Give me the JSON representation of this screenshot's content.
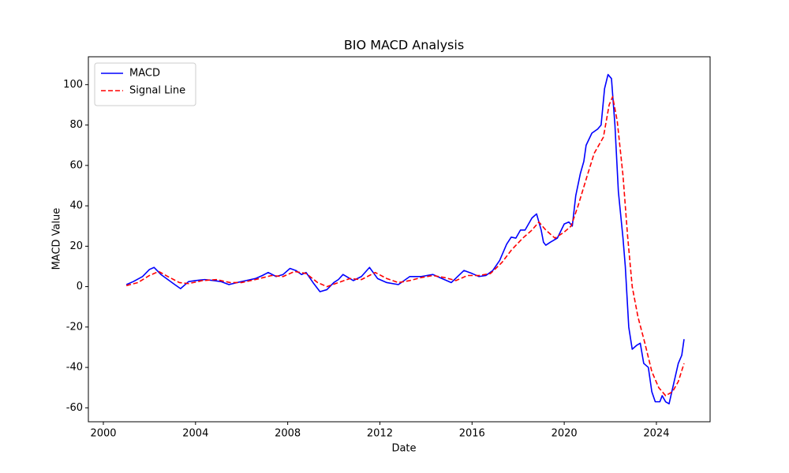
{
  "chart_data": {
    "type": "line",
    "title": "BIO MACD Analysis",
    "xlabel": "Date",
    "ylabel": "MACD Value",
    "xlim": [
      1999.35,
      2026.33
    ],
    "xticks": [
      2000,
      2004,
      2008,
      2012,
      2016,
      2020,
      2024
    ],
    "ylim": [
      -66.9,
      113.8
    ],
    "yticks": [
      -60,
      -40,
      -20,
      0,
      20,
      40,
      60,
      80,
      100
    ],
    "grid": false,
    "legend": "upper left",
    "series": [
      {
        "name": "MACD",
        "color": "#0000ff",
        "dashed": false,
        "x": [
          2001.0,
          2001.3,
          2001.7,
          2002.0,
          2002.2,
          2002.5,
          2002.8,
          2003.1,
          2003.35,
          2003.7,
          2004.0,
          2004.4,
          2004.8,
          2005.1,
          2005.45,
          2005.8,
          2006.2,
          2006.6,
          2006.9,
          2007.15,
          2007.5,
          2007.8,
          2008.1,
          2008.35,
          2008.6,
          2008.8,
          2009.1,
          2009.4,
          2009.7,
          2010.0,
          2010.2,
          2010.4,
          2010.85,
          2011.2,
          2011.55,
          2011.9,
          2012.3,
          2012.8,
          2013.3,
          2013.8,
          2014.3,
          2014.7,
          2015.1,
          2015.65,
          2016.0,
          2016.3,
          2016.6,
          2016.9,
          2017.2,
          2017.5,
          2017.7,
          2017.9,
          2018.1,
          2018.3,
          2018.6,
          2018.8,
          2019.0,
          2019.1,
          2019.2,
          2019.4,
          2019.7,
          2020.0,
          2020.2,
          2020.35,
          2020.5,
          2020.7,
          2020.85,
          2020.95,
          2021.2,
          2021.45,
          2021.6,
          2021.75,
          2021.9,
          2022.05,
          2022.2,
          2022.35,
          2022.55,
          2022.65,
          2022.8,
          2022.95,
          2023.15,
          2023.3,
          2023.45,
          2023.65,
          2023.8,
          2023.95,
          2024.15,
          2024.25,
          2024.4,
          2024.55,
          2024.75,
          2024.95,
          2025.1,
          2025.2
        ],
        "values": [
          1,
          2.5,
          5,
          8.5,
          9.5,
          6,
          3.5,
          1,
          -1,
          2.5,
          3,
          3.5,
          3,
          2.5,
          1,
          2,
          3,
          4,
          5.5,
          7,
          5,
          6,
          9,
          8,
          6,
          7,
          2,
          -2.5,
          -1.5,
          2,
          3.5,
          6,
          3,
          5,
          9.5,
          4,
          2,
          1,
          5,
          5,
          6,
          4,
          2,
          8,
          6.5,
          5,
          5.5,
          8,
          13,
          21,
          24.5,
          24,
          28,
          28,
          34,
          36,
          28,
          22,
          20.5,
          22,
          24,
          31,
          32,
          30,
          45,
          56,
          62,
          70,
          76,
          78,
          80,
          98,
          105,
          103,
          80,
          47,
          24,
          10,
          -20,
          -31,
          -29,
          -28,
          -38,
          -40,
          -52,
          -57,
          -57,
          -54,
          -57,
          -58,
          -48,
          -38,
          -34,
          -26
        ]
      },
      {
        "name": "Signal Line",
        "color": "#ff0000",
        "dashed": true,
        "x": [
          2001.0,
          2001.5,
          2002.0,
          2002.4,
          2002.8,
          2003.3,
          2003.7,
          2004.3,
          2004.9,
          2005.5,
          2006.0,
          2006.6,
          2007.3,
          2007.8,
          2008.3,
          2008.8,
          2009.3,
          2009.7,
          2010.2,
          2010.7,
          2011.2,
          2011.8,
          2012.3,
          2012.8,
          2013.3,
          2013.8,
          2014.3,
          2014.8,
          2015.3,
          2015.8,
          2016.3,
          2016.8,
          2017.3,
          2017.7,
          2018.2,
          2018.6,
          2018.9,
          2019.2,
          2019.6,
          2020.0,
          2020.3,
          2020.6,
          2021.0,
          2021.3,
          2021.7,
          2021.95,
          2022.1,
          2022.3,
          2022.55,
          2022.75,
          2022.95,
          2023.2,
          2023.5,
          2023.8,
          2024.1,
          2024.4,
          2024.7,
          2024.95,
          2025.2
        ],
        "values": [
          0.5,
          2,
          5.5,
          7.5,
          5,
          2,
          1.5,
          3,
          3.5,
          2,
          2,
          3.5,
          5.5,
          5,
          7.5,
          6.5,
          2,
          0,
          2,
          4,
          3.5,
          7,
          4,
          2,
          3,
          4.5,
          5.5,
          4.5,
          3,
          5.5,
          5.5,
          6.5,
          12,
          18,
          24,
          28,
          32,
          28,
          24,
          27,
          30,
          40,
          55,
          66,
          74,
          90,
          94,
          82,
          55,
          25,
          0,
          -15,
          -28,
          -42,
          -50,
          -54,
          -52,
          -47,
          -38
        ]
      }
    ]
  }
}
